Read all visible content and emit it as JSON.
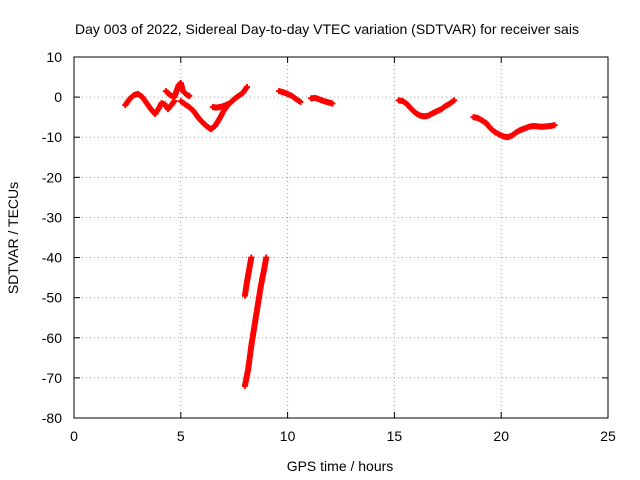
{
  "chart_data": {
    "type": "scatter",
    "title": "Day 003 of 2022, Sidereal Day-to-day VTEC variation (SDTVAR) for receiver sais",
    "xlabel": "GPS time / hours",
    "ylabel": "SDTVAR / TECUs",
    "xlim": [
      0,
      25
    ],
    "ylim": [
      -80,
      10
    ],
    "xticks": [
      0,
      5,
      10,
      15,
      20,
      25
    ],
    "yticks": [
      10,
      0,
      -10,
      -20,
      -30,
      -40,
      -50,
      -60,
      -70,
      -80
    ],
    "grid": true,
    "marker": "plus",
    "colors": {
      "series": "#ff0000",
      "grid": "#a0a0a0",
      "axes": "#000000"
    },
    "segments": [
      {
        "x": [
          2.4,
          2.6,
          2.8,
          3.0,
          3.2,
          3.4,
          3.6,
          3.8,
          3.95,
          4.1,
          4.25,
          4.4,
          4.55,
          4.7
        ],
        "y": [
          -2,
          -0.5,
          0.5,
          0.8,
          0,
          -1.5,
          -3,
          -4.2,
          -3,
          -1.5,
          -1.8,
          -3,
          -2,
          -1
        ]
      },
      {
        "x": [
          4.3,
          4.5,
          4.7,
          4.8,
          4.9,
          5.0,
          5.05,
          5.1,
          5.2,
          5.3,
          5.4
        ],
        "y": [
          1.5,
          0.5,
          0,
          1.5,
          3,
          3.5,
          2.5,
          1.5,
          1.0,
          0.5,
          0.3
        ]
      },
      {
        "x": [
          5.0,
          5.2,
          5.4,
          5.6,
          5.8,
          6.0,
          6.2,
          6.4,
          6.6,
          6.8,
          7.0,
          7.2
        ],
        "y": [
          -1,
          -1.8,
          -2.5,
          -3.5,
          -5,
          -6.2,
          -7.2,
          -8,
          -7.2,
          -5.5,
          -3.5,
          -2
        ]
      },
      {
        "x": [
          6.5,
          6.7,
          6.9,
          7.1,
          7.3,
          7.5,
          7.7,
          7.9,
          8.0,
          8.1
        ],
        "y": [
          -2.5,
          -2.6,
          -2.4,
          -2,
          -1.5,
          -0.5,
          0.3,
          1,
          1.8,
          2.5
        ]
      },
      {
        "x": [
          8.0,
          8.1,
          8.2,
          8.3
        ],
        "y": [
          -49.5,
          -46,
          -43,
          -40
        ]
      },
      {
        "x": [
          8.0,
          8.15,
          8.3,
          8.45,
          8.6,
          8.75,
          8.9,
          9.0
        ],
        "y": [
          -72,
          -68,
          -62,
          -57,
          -52,
          -47,
          -43,
          -40
        ]
      },
      {
        "x": [
          9.6,
          9.8,
          10.0,
          10.2,
          10.4,
          10.6
        ],
        "y": [
          1.5,
          1.2,
          0.8,
          0.3,
          -0.5,
          -1.2
        ]
      },
      {
        "x": [
          11.1,
          11.3,
          11.5,
          11.7,
          11.9,
          12.1
        ],
        "y": [
          -0.3,
          -0.2,
          -0.6,
          -1.0,
          -1.3,
          -1.6
        ]
      },
      {
        "x": [
          15.2,
          15.4,
          15.6,
          15.8,
          16.0,
          16.2,
          16.4,
          16.6,
          16.8,
          17.0,
          17.2,
          17.4,
          17.6,
          17.8
        ],
        "y": [
          -0.8,
          -1,
          -1.8,
          -3,
          -4,
          -4.6,
          -4.8,
          -4.6,
          -4,
          -3.5,
          -3,
          -2.2,
          -1.6,
          -0.8
        ]
      },
      {
        "x": [
          18.7,
          18.9,
          19.1,
          19.3,
          19.5,
          19.7,
          19.9,
          20.1,
          20.3,
          20.5,
          20.7,
          20.9,
          21.1,
          21.3,
          21.5,
          21.7,
          21.9,
          22.1,
          22.3,
          22.5
        ],
        "y": [
          -5,
          -5.2,
          -5.8,
          -6.5,
          -7.8,
          -8.7,
          -9.3,
          -9.8,
          -10,
          -9.6,
          -8.8,
          -8.2,
          -7.8,
          -7.4,
          -7.2,
          -7.3,
          -7.4,
          -7.3,
          -7.2,
          -7
        ]
      }
    ]
  }
}
